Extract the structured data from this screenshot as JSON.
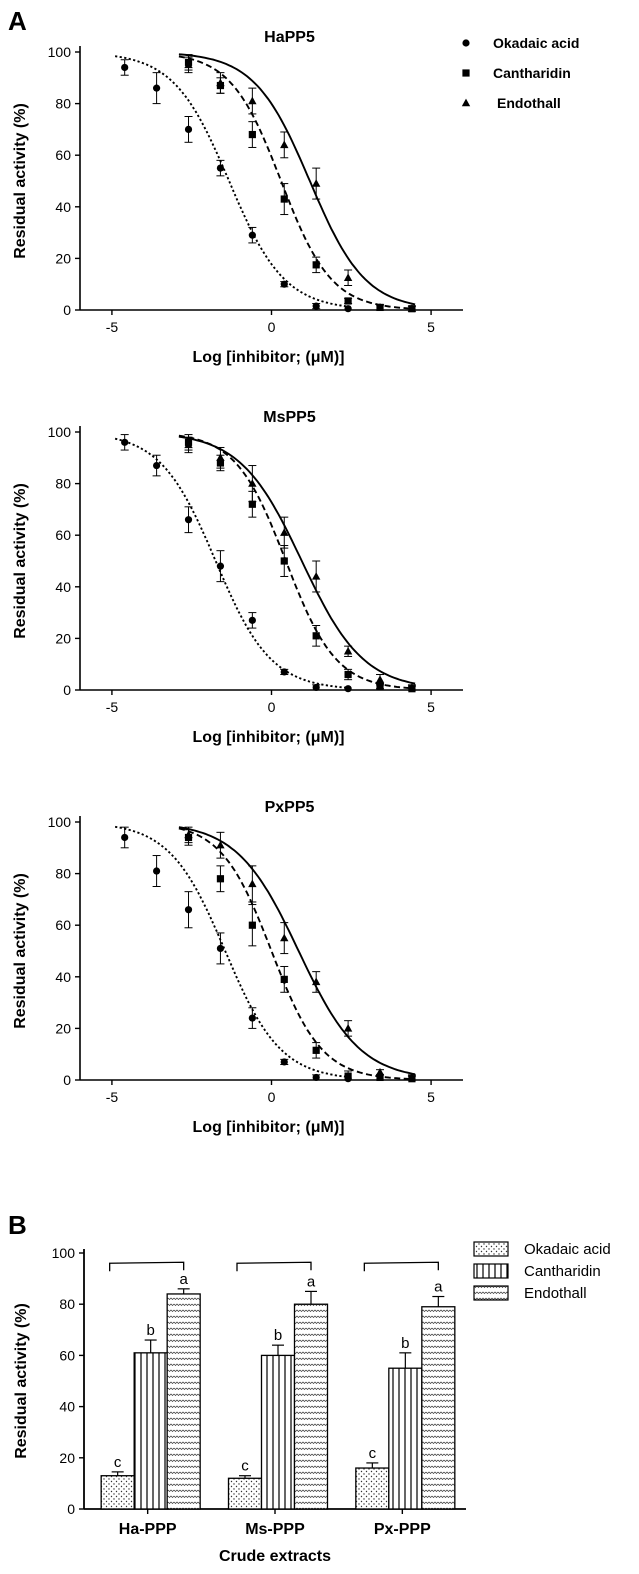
{
  "figure": {
    "panel_a_label": "A",
    "panel_b_label": "B"
  },
  "colors": {
    "ink": "#000000",
    "bar_fill": "#ffffff"
  },
  "chart_data": [
    {
      "type": "scatter",
      "title": "HaPP5",
      "xlabel": "Log [inhibitor; (μM)]",
      "ylabel": "Residual activity (%)",
      "xlim": [
        -6,
        6
      ],
      "ylim": [
        0,
        100
      ],
      "xticks": [
        -5,
        0,
        5
      ],
      "yticks": [
        0,
        20,
        40,
        60,
        80,
        100
      ],
      "grid": false,
      "legend": "top-right",
      "series": [
        {
          "name": "Okadaic acid",
          "marker": "circle",
          "curve": "dotted",
          "x": [
            -4.6,
            -3.6,
            -2.6,
            -1.6,
            -0.6,
            0.4,
            1.4,
            2.4
          ],
          "y": [
            94,
            86,
            70,
            55,
            29,
            10,
            1.5,
            0.5
          ],
          "err": [
            3,
            6,
            5,
            3,
            3,
            1,
            1,
            0.5
          ],
          "fit": {
            "top": 100,
            "bottom": 0,
            "logic50": -1.33,
            "hill": -0.5
          }
        },
        {
          "name": "Cantharidin",
          "marker": "square",
          "curve": "dashed",
          "x": [
            -2.6,
            -1.6,
            -0.6,
            0.4,
            1.4,
            2.4,
            3.4,
            4.4
          ],
          "y": [
            96,
            87,
            68,
            43,
            17.5,
            3.5,
            1,
            0.5
          ],
          "err": [
            3,
            3,
            5,
            6,
            3,
            1,
            1,
            1
          ],
          "fit": {
            "top": 100,
            "bottom": 0,
            "logic50": 0.3,
            "hill": -0.55
          }
        },
        {
          "name": "Endothall",
          "marker": "triangle",
          "curve": "solid",
          "x": [
            -2.6,
            -1.6,
            -0.6,
            0.4,
            1.4,
            2.4,
            3.4,
            4.4
          ],
          "y": [
            95,
            88,
            81,
            64,
            49,
            12.5,
            1,
            0.5
          ],
          "err": [
            3,
            4,
            5,
            5,
            6,
            3,
            1,
            1
          ],
          "fit": {
            "top": 100,
            "bottom": 0,
            "logic50": 1.2,
            "hill": -0.5
          }
        }
      ]
    },
    {
      "type": "scatter",
      "title": "MsPP5",
      "xlabel": "Log [inhibitor; (μM)]",
      "ylabel": "Residual activity (%)",
      "xlim": [
        -6,
        6
      ],
      "ylim": [
        0,
        100
      ],
      "xticks": [
        -5,
        0,
        5
      ],
      "yticks": [
        0,
        20,
        40,
        60,
        80,
        100
      ],
      "grid": false,
      "series": [
        {
          "name": "Okadaic acid",
          "marker": "circle",
          "curve": "dotted",
          "x": [
            -4.6,
            -3.6,
            -2.6,
            -1.6,
            -0.6,
            0.4,
            1.4,
            2.4
          ],
          "y": [
            96,
            87,
            66,
            48,
            27,
            7,
            1,
            0.5
          ],
          "err": [
            3,
            4,
            5,
            6,
            3,
            1,
            1,
            0.5
          ],
          "fit": {
            "top": 100,
            "bottom": 0,
            "logic50": -1.75,
            "hill": -0.5
          }
        },
        {
          "name": "Cantharidin",
          "marker": "square",
          "curve": "dashed",
          "x": [
            -2.6,
            -1.6,
            -0.6,
            0.4,
            1.4,
            2.4,
            3.4,
            4.4
          ],
          "y": [
            96,
            88,
            72,
            50,
            21,
            6,
            1.5,
            0.5
          ],
          "err": [
            3,
            3,
            5,
            6,
            4,
            2,
            1,
            1
          ],
          "fit": {
            "top": 100,
            "bottom": 0,
            "logic50": 0.45,
            "hill": -0.55
          }
        },
        {
          "name": "Endothall",
          "marker": "triangle",
          "curve": "solid",
          "x": [
            -2.6,
            -1.6,
            -0.6,
            0.4,
            1.4,
            2.4,
            3.4,
            4.4
          ],
          "y": [
            95,
            90,
            80,
            61,
            44,
            15,
            4,
            1
          ],
          "err": [
            3,
            4,
            7,
            6,
            6,
            2,
            2,
            1
          ],
          "fit": {
            "top": 100,
            "bottom": 0,
            "logic50": 0.95,
            "hill": -0.45
          }
        }
      ]
    },
    {
      "type": "scatter",
      "title": "PxPP5",
      "xlabel": "Log [inhibitor; (μM)]",
      "ylabel": "Residual activity (%)",
      "xlim": [
        -6,
        6
      ],
      "ylim": [
        0,
        100
      ],
      "xticks": [
        -5,
        0,
        5
      ],
      "yticks": [
        0,
        20,
        40,
        60,
        80,
        100
      ],
      "grid": false,
      "series": [
        {
          "name": "Okadaic acid",
          "marker": "circle",
          "curve": "dotted",
          "x": [
            -4.6,
            -3.6,
            -2.6,
            -1.6,
            -0.6,
            0.4,
            1.4,
            2.4
          ],
          "y": [
            94,
            81,
            66,
            51,
            24,
            7,
            1,
            0.5
          ],
          "err": [
            4,
            6,
            7,
            6,
            4,
            1,
            1,
            0.5
          ],
          "fit": {
            "top": 100,
            "bottom": 0,
            "logic50": -1.45,
            "hill": -0.5
          }
        },
        {
          "name": "Cantharidin",
          "marker": "square",
          "curve": "dashed",
          "x": [
            -2.6,
            -1.6,
            -0.6,
            0.4,
            1.4,
            2.4,
            3.4,
            4.4
          ],
          "y": [
            94,
            78,
            60,
            39,
            11.5,
            1.5,
            1,
            0.5
          ],
          "err": [
            3,
            5,
            8,
            5,
            3,
            2,
            1,
            1
          ],
          "fit": {
            "top": 100,
            "bottom": 0,
            "logic50": 0.0,
            "hill": -0.55
          }
        },
        {
          "name": "Endothall",
          "marker": "triangle",
          "curve": "solid",
          "x": [
            -2.6,
            -1.6,
            -0.6,
            0.4,
            1.4,
            2.4,
            3.4,
            4.4
          ],
          "y": [
            95,
            91,
            76,
            55,
            38,
            20,
            3,
            1
          ],
          "err": [
            3,
            5,
            7,
            6,
            4,
            3,
            1,
            1
          ],
          "fit": {
            "top": 100,
            "bottom": 0,
            "logic50": 0.85,
            "hill": -0.45
          }
        }
      ]
    },
    {
      "type": "bar",
      "xlabel": "Crude extracts",
      "ylabel": "Residual activity (%)",
      "ylim": [
        0,
        100
      ],
      "yticks": [
        0,
        20,
        40,
        60,
        80,
        100
      ],
      "ytick_labels": [
        "0",
        "20",
        "40",
        "60",
        "80",
        "100"
      ],
      "grid": false,
      "legend": "top-right",
      "categories": [
        "Ha-PPP",
        "Ms-PPP",
        "Px-PPP"
      ],
      "series": [
        {
          "name": "Okadaic acid",
          "pattern": "dots",
          "values": [
            13,
            12,
            16
          ],
          "err": [
            1.5,
            1,
            2
          ],
          "letters": [
            "c",
            "c",
            "c"
          ]
        },
        {
          "name": "Cantharidin",
          "pattern": "vlines",
          "values": [
            61,
            60,
            55
          ],
          "err": [
            5,
            4,
            6
          ],
          "letters": [
            "b",
            "b",
            "b"
          ]
        },
        {
          "name": "Endothall",
          "pattern": "waves",
          "values": [
            84,
            80,
            79
          ],
          "err": [
            2,
            5,
            4
          ],
          "letters": [
            "a",
            "a",
            "a"
          ]
        }
      ]
    }
  ]
}
